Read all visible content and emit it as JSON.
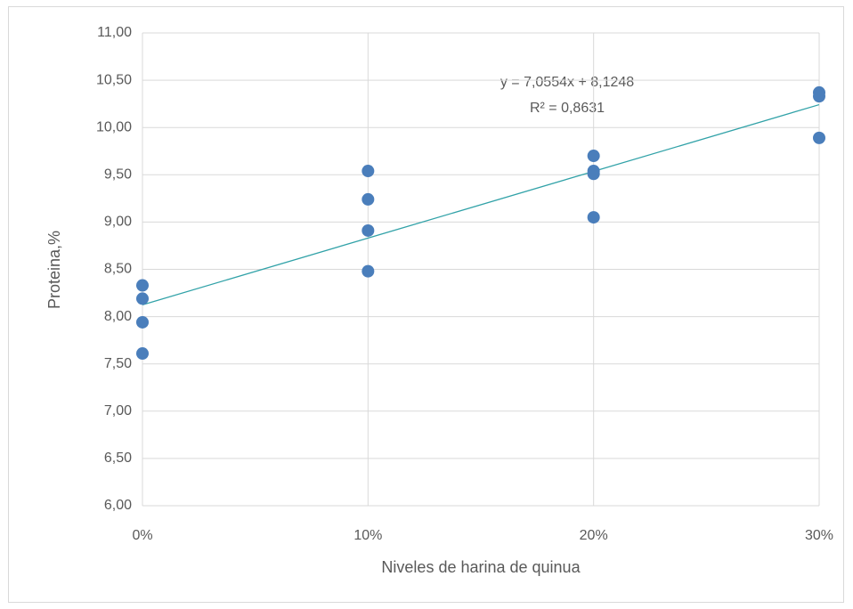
{
  "chart_data": {
    "type": "scatter",
    "x_label": "Niveles de harina de quinua",
    "y_label": "Proteina,%",
    "x": [
      0,
      0,
      0,
      0,
      0.1,
      0.1,
      0.1,
      0.1,
      0.2,
      0.2,
      0.2,
      0.2,
      0.3,
      0.3,
      0.3
    ],
    "values": [
      8.33,
      8.19,
      7.94,
      7.61,
      9.54,
      9.24,
      8.91,
      8.48,
      9.7,
      9.54,
      9.51,
      9.05,
      10.37,
      10.33,
      9.89
    ],
    "color": "#4a7ebb",
    "xlim": [
      0,
      0.3
    ],
    "xticks": [
      {
        "value": 0,
        "label": "0%"
      },
      {
        "value": 0.1,
        "label": "10%"
      },
      {
        "value": 0.2,
        "label": "20%"
      },
      {
        "value": 0.3,
        "label": "30%"
      }
    ],
    "ylim": [
      6,
      11
    ],
    "yticks": [
      {
        "value": 6,
        "label": "6,00"
      },
      {
        "value": 6.5,
        "label": "6,50"
      },
      {
        "value": 7,
        "label": "7,00"
      },
      {
        "value": 7.5,
        "label": "7,50"
      },
      {
        "value": 8,
        "label": "8,00"
      },
      {
        "value": 8.5,
        "label": "8,50"
      },
      {
        "value": 9,
        "label": "9,00"
      },
      {
        "value": 9.5,
        "label": "9,50"
      },
      {
        "value": 10,
        "label": "10,00"
      },
      {
        "value": 10.5,
        "label": "10,50"
      },
      {
        "value": 11,
        "label": "11,00"
      }
    ],
    "grid": true,
    "trendline": {
      "slope": 7.0554,
      "intercept": 8.1248,
      "color": "#31a2a8",
      "equation": "y = 7,0554x + 8,1248",
      "r_squared": "R² = 0,8631"
    }
  }
}
